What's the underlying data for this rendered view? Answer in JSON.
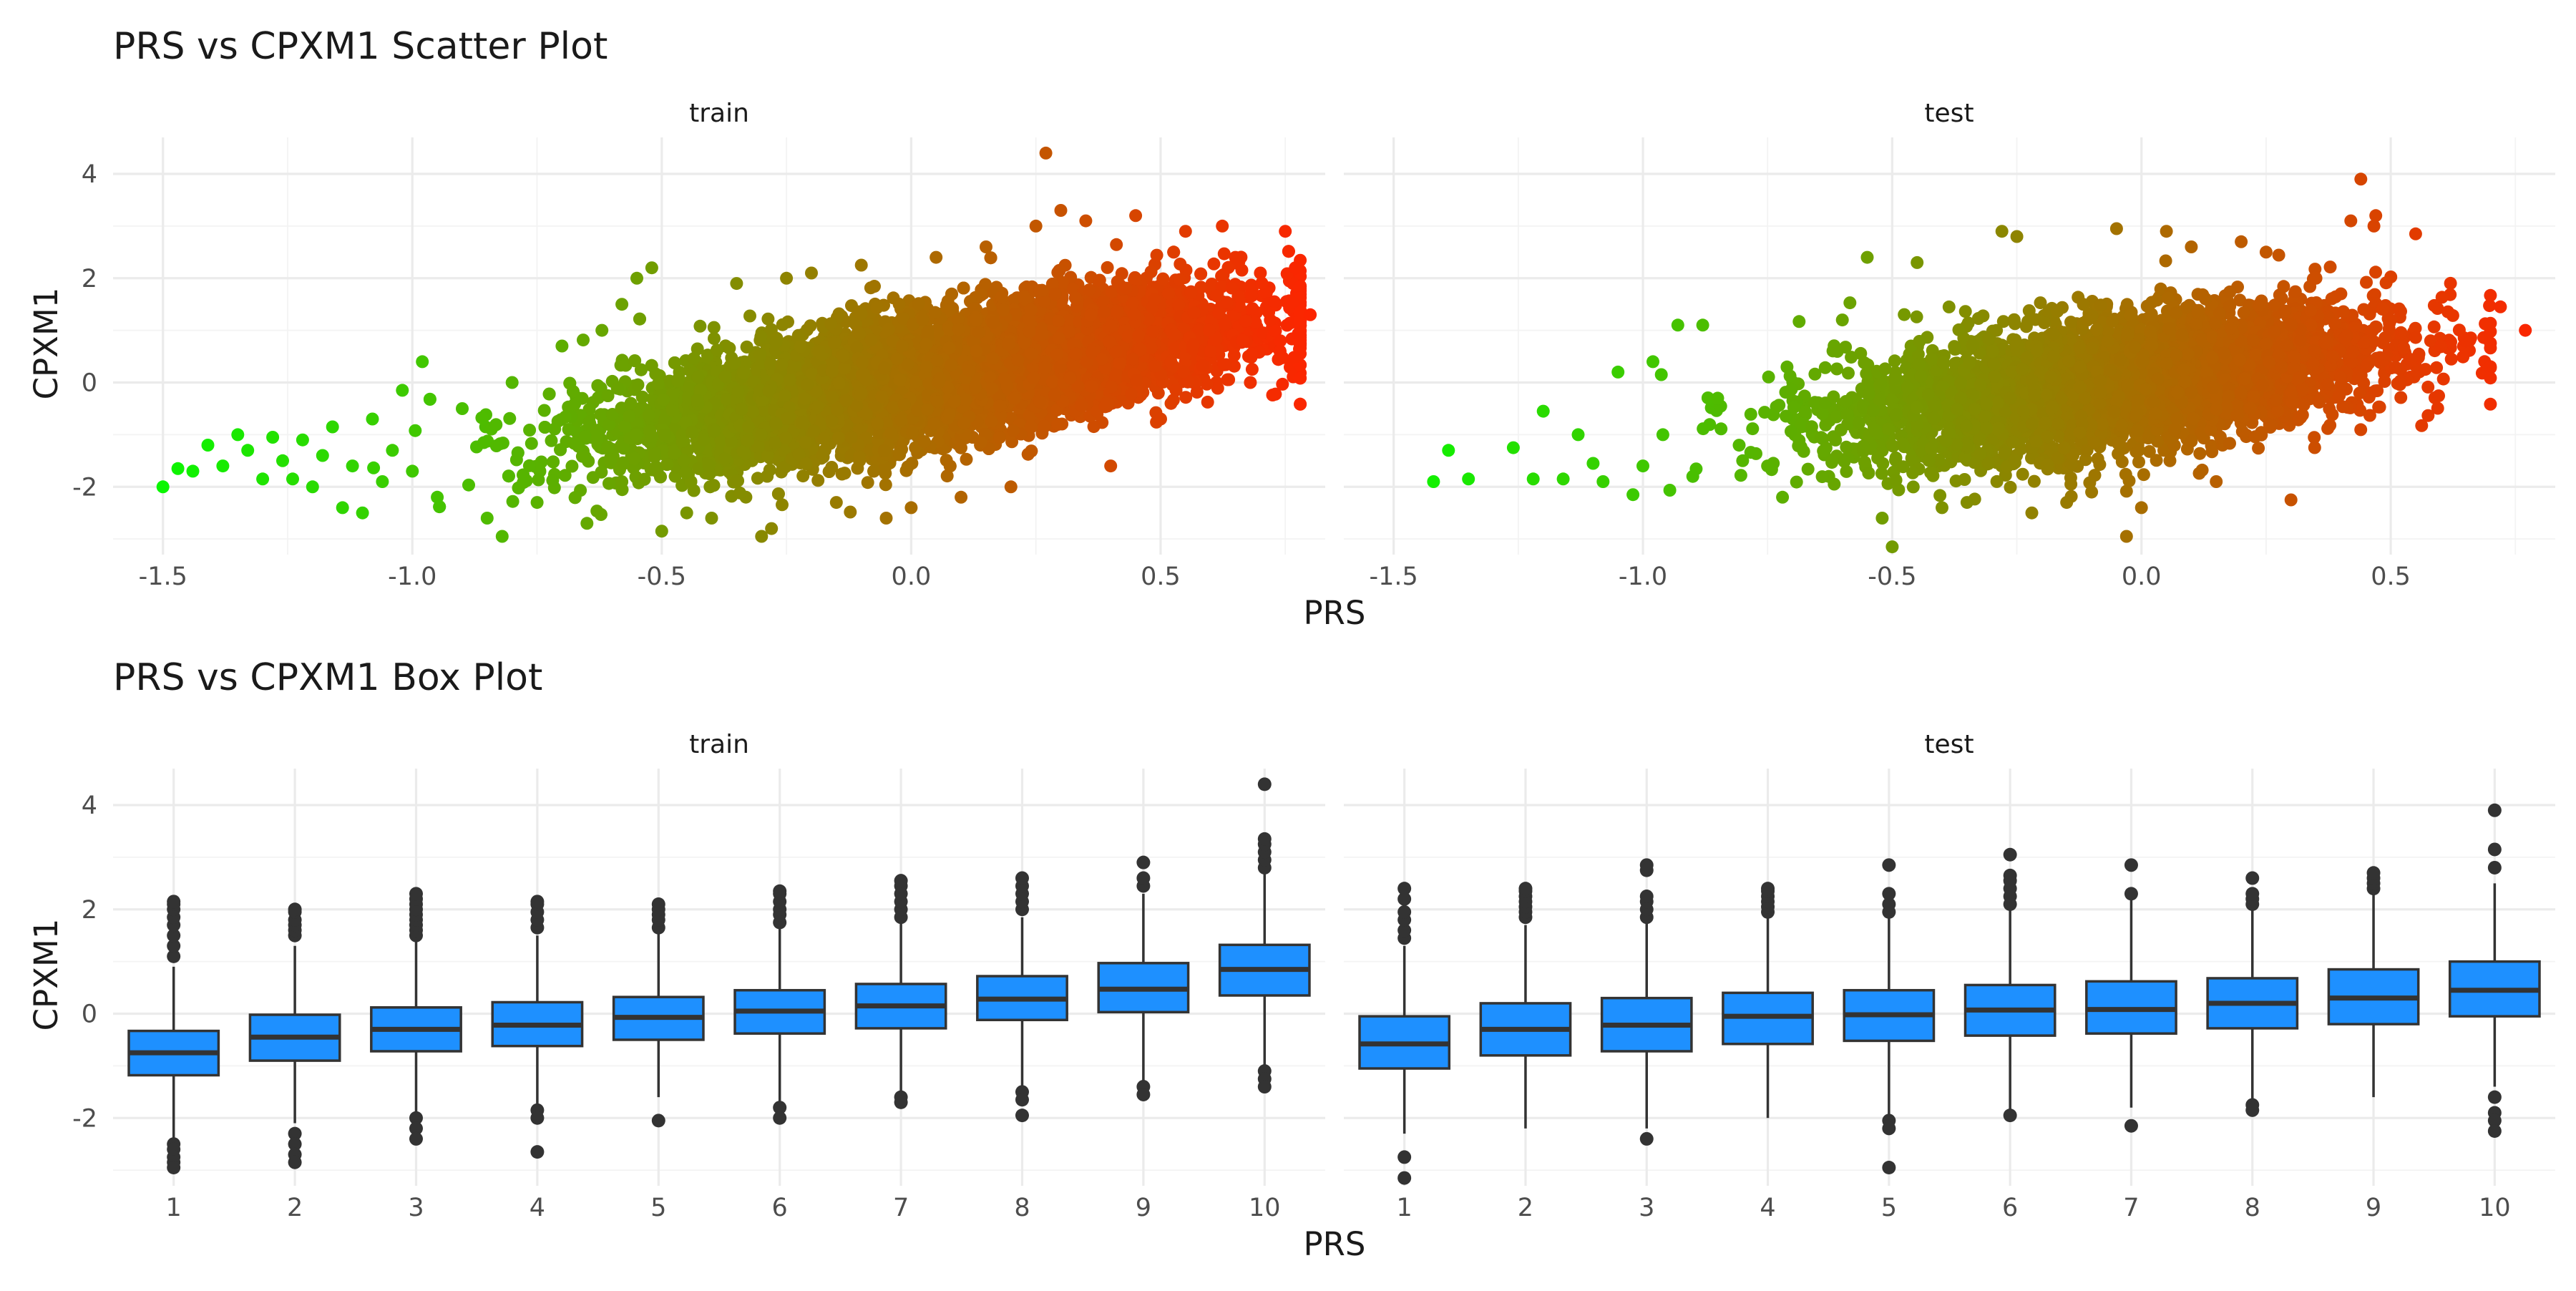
{
  "chart_data": [
    {
      "type": "scatter",
      "title": "PRS vs CPXM1 Scatter Plot",
      "xlabel": "PRS",
      "ylabel": "CPXM1",
      "facets": [
        "train",
        "test"
      ],
      "xlim": [
        -1.6,
        0.83
      ],
      "ylim": [
        -3.3,
        4.7
      ],
      "xticks": [
        -1.5,
        -1.0,
        -0.5,
        0.0,
        0.5
      ],
      "xtick_labels": [
        "-1.5",
        "-1.0",
        "-0.5",
        "0.0",
        "0.5"
      ],
      "yticks": [
        -2,
        0,
        2,
        4
      ],
      "ytick_labels": [
        "-2",
        "0",
        "2",
        "4"
      ],
      "grid": true,
      "legend": "none",
      "color_scale": {
        "low": "#00ff00",
        "high": "#ff2200",
        "mapped_to": "PRS"
      },
      "series": [
        {
          "name": "train",
          "points": [
            [
              -1.5,
              -2.0
            ],
            [
              -1.47,
              -1.65
            ],
            [
              -1.44,
              -1.7
            ],
            [
              -1.41,
              -1.2
            ],
            [
              -1.38,
              -1.6
            ],
            [
              -1.35,
              -1.0
            ],
            [
              -1.33,
              -1.3
            ],
            [
              -1.3,
              -1.85
            ],
            [
              -1.28,
              -1.05
            ],
            [
              -1.26,
              -1.5
            ],
            [
              -1.24,
              -1.85
            ],
            [
              -1.22,
              -1.1
            ],
            [
              -1.2,
              -2.0
            ],
            [
              -1.18,
              -1.4
            ],
            [
              -1.16,
              -0.85
            ],
            [
              -1.14,
              -2.4
            ],
            [
              -1.12,
              -1.6
            ],
            [
              -1.1,
              -2.5
            ],
            [
              -1.08,
              -0.7
            ],
            [
              -1.06,
              -1.9
            ],
            [
              -1.04,
              -1.3
            ],
            [
              -1.02,
              -0.15
            ],
            [
              -1.0,
              -1.7
            ],
            [
              -0.98,
              0.4
            ],
            [
              -0.95,
              -2.2
            ],
            [
              -0.9,
              -0.5
            ],
            [
              -0.85,
              -2.6
            ],
            [
              -0.82,
              -2.95
            ],
            [
              -0.8,
              0.0
            ],
            [
              -0.75,
              -2.3
            ],
            [
              -0.7,
              0.7
            ],
            [
              -0.65,
              -2.7
            ],
            [
              -0.62,
              1.0
            ],
            [
              -0.58,
              1.5
            ],
            [
              -0.55,
              2.0
            ],
            [
              -0.52,
              2.2
            ],
            [
              -0.5,
              -2.85
            ],
            [
              -0.45,
              -2.5
            ],
            [
              -0.4,
              -2.6
            ],
            [
              -0.35,
              1.9
            ],
            [
              -0.3,
              -2.95
            ],
            [
              -0.28,
              -2.8
            ],
            [
              -0.25,
              2.0
            ],
            [
              -0.2,
              2.1
            ],
            [
              -0.15,
              -2.3
            ],
            [
              -0.1,
              2.25
            ],
            [
              -0.05,
              -2.6
            ],
            [
              0.0,
              -2.4
            ],
            [
              0.05,
              2.4
            ],
            [
              0.1,
              -2.2
            ],
            [
              0.15,
              2.6
            ],
            [
              0.2,
              -2.0
            ],
            [
              0.25,
              3.0
            ],
            [
              0.27,
              4.4
            ],
            [
              0.3,
              3.3
            ],
            [
              0.35,
              3.1
            ],
            [
              0.4,
              -1.6
            ],
            [
              0.45,
              3.2
            ],
            [
              0.5,
              -0.7
            ],
            [
              0.55,
              2.9
            ],
            [
              0.6,
              0.6
            ],
            [
              0.65,
              2.4
            ],
            [
              0.68,
              0.0
            ],
            [
              0.7,
              2.1
            ],
            [
              0.72,
              1.2
            ],
            [
              0.74,
              0.8
            ],
            [
              0.75,
              2.9
            ],
            [
              0.77,
              2.2
            ],
            [
              0.78,
              1.35
            ],
            [
              0.8,
              1.3
            ]
          ]
        },
        {
          "name": "test",
          "points": [
            [
              -1.42,
              -1.9
            ],
            [
              -1.39,
              -1.3
            ],
            [
              -1.35,
              -1.85
            ],
            [
              -1.26,
              -1.25
            ],
            [
              -1.22,
              -1.85
            ],
            [
              -1.2,
              -0.55
            ],
            [
              -1.16,
              -1.85
            ],
            [
              -1.13,
              -1.0
            ],
            [
              -1.1,
              -1.55
            ],
            [
              -1.08,
              -1.9
            ],
            [
              -1.05,
              0.2
            ],
            [
              -1.02,
              -2.15
            ],
            [
              -1.0,
              -1.6
            ],
            [
              -0.98,
              0.4
            ],
            [
              -0.96,
              -1.0
            ],
            [
              -0.93,
              1.1
            ],
            [
              -0.9,
              -1.8
            ],
            [
              -0.88,
              1.1
            ],
            [
              -0.85,
              -0.3
            ],
            [
              -0.8,
              -1.5
            ],
            [
              -0.75,
              -1.6
            ],
            [
              -0.72,
              -2.2
            ],
            [
              -0.6,
              1.2
            ],
            [
              -0.55,
              2.4
            ],
            [
              -0.52,
              -2.6
            ],
            [
              -0.5,
              -3.15
            ],
            [
              -0.45,
              2.3
            ],
            [
              -0.4,
              -2.4
            ],
            [
              -0.35,
              -2.3
            ],
            [
              -0.28,
              2.9
            ],
            [
              -0.25,
              2.8
            ],
            [
              -0.22,
              -2.5
            ],
            [
              -0.15,
              -2.3
            ],
            [
              -0.1,
              -2.1
            ],
            [
              -0.05,
              2.95
            ],
            [
              -0.03,
              -2.95
            ],
            [
              0.0,
              -2.4
            ],
            [
              0.05,
              2.9
            ],
            [
              0.1,
              2.6
            ],
            [
              0.15,
              -1.9
            ],
            [
              0.2,
              2.7
            ],
            [
              0.25,
              2.5
            ],
            [
              0.3,
              -2.25
            ],
            [
              0.35,
              2.0
            ],
            [
              0.4,
              1.7
            ],
            [
              0.42,
              3.1
            ],
            [
              0.44,
              3.9
            ],
            [
              0.47,
              3.2
            ],
            [
              0.5,
              1.2
            ],
            [
              0.55,
              2.85
            ],
            [
              0.58,
              0.8
            ],
            [
              0.6,
              0.7
            ],
            [
              0.65,
              0.8
            ],
            [
              0.72,
              1.45
            ],
            [
              0.77,
              1.0
            ]
          ]
        }
      ]
    },
    {
      "type": "box",
      "title": "PRS vs CPXM1 Box Plot",
      "xlabel": "PRS",
      "ylabel": "CPXM1",
      "facets": [
        "train",
        "test"
      ],
      "categories": [
        "1",
        "2",
        "3",
        "4",
        "5",
        "6",
        "7",
        "8",
        "9",
        "10"
      ],
      "ylim": [
        -3.3,
        4.7
      ],
      "yticks": [
        -2,
        0,
        2,
        4
      ],
      "ytick_labels": [
        "-2",
        "0",
        "2",
        "4"
      ],
      "grid": true,
      "legend": "none",
      "box_color": "#1e90ff",
      "series": [
        {
          "name": "train",
          "boxes": [
            {
              "category": "1",
              "q1": -1.18,
              "median": -0.75,
              "q3": -0.33,
              "whisker_low": -2.42,
              "whisker_high": 0.9,
              "outliers": [
                -2.5,
                -2.6,
                -2.75,
                -2.85,
                -2.95,
                1.1,
                1.3,
                1.5,
                1.7,
                1.85,
                2.0,
                2.1,
                2.15
              ]
            },
            {
              "category": "2",
              "q1": -0.9,
              "median": -0.45,
              "q3": -0.02,
              "whisker_low": -2.1,
              "whisker_high": 1.3,
              "outliers": [
                -2.3,
                -2.5,
                -2.7,
                -2.85,
                1.5,
                1.6,
                1.7,
                1.8,
                1.95,
                2.0
              ]
            },
            {
              "category": "3",
              "q1": -0.72,
              "median": -0.3,
              "q3": 0.12,
              "whisker_low": -1.95,
              "whisker_high": 1.4,
              "outliers": [
                -2.0,
                -2.2,
                -2.4,
                1.5,
                1.6,
                1.7,
                1.8,
                1.9,
                2.0,
                2.1,
                2.2,
                2.3
              ]
            },
            {
              "category": "4",
              "q1": -0.62,
              "median": -0.22,
              "q3": 0.22,
              "whisker_low": -1.8,
              "whisker_high": 1.5,
              "outliers": [
                -1.85,
                -2.0,
                -2.65,
                1.65,
                1.8,
                1.95,
                2.1,
                2.15
              ]
            },
            {
              "category": "5",
              "q1": -0.5,
              "median": -0.07,
              "q3": 0.32,
              "whisker_low": -1.6,
              "whisker_high": 1.55,
              "outliers": [
                -2.05,
                1.65,
                1.8,
                1.9,
                2.0,
                2.1
              ]
            },
            {
              "category": "6",
              "q1": -0.38,
              "median": 0.05,
              "q3": 0.45,
              "whisker_low": -1.7,
              "whisker_high": 1.65,
              "outliers": [
                -1.8,
                -2.0,
                1.75,
                1.9,
                2.0,
                2.15,
                2.3,
                2.35
              ]
            },
            {
              "category": "7",
              "q1": -0.28,
              "median": 0.15,
              "q3": 0.57,
              "whisker_low": -1.5,
              "whisker_high": 1.75,
              "outliers": [
                -1.6,
                -1.7,
                1.85,
                2.0,
                2.15,
                2.3,
                2.45,
                2.55
              ]
            },
            {
              "category": "8",
              "q1": -0.12,
              "median": 0.28,
              "q3": 0.72,
              "whisker_low": -1.4,
              "whisker_high": 1.85,
              "outliers": [
                -1.5,
                -1.65,
                -1.95,
                2.0,
                2.15,
                2.3,
                2.45,
                2.6
              ]
            },
            {
              "category": "9",
              "q1": 0.03,
              "median": 0.47,
              "q3": 0.97,
              "whisker_low": -1.3,
              "whisker_high": 2.3,
              "outliers": [
                -1.4,
                -1.55,
                2.45,
                2.6,
                2.9
              ]
            },
            {
              "category": "10",
              "q1": 0.35,
              "median": 0.85,
              "q3": 1.32,
              "whisker_low": -1.0,
              "whisker_high": 2.7,
              "outliers": [
                -1.1,
                -1.25,
                -1.4,
                2.8,
                2.95,
                3.1,
                3.25,
                3.35,
                4.4
              ]
            }
          ]
        },
        {
          "name": "test",
          "boxes": [
            {
              "category": "1",
              "q1": -1.05,
              "median": -0.58,
              "q3": -0.05,
              "whisker_low": -2.3,
              "whisker_high": 1.3,
              "outliers": [
                -2.75,
                -3.15,
                1.45,
                1.6,
                1.8,
                1.95,
                2.2,
                2.4
              ]
            },
            {
              "category": "2",
              "q1": -0.8,
              "median": -0.3,
              "q3": 0.2,
              "whisker_low": -2.2,
              "whisker_high": 1.7,
              "outliers": [
                1.85,
                1.95,
                2.05,
                2.15,
                2.25,
                2.35,
                2.4
              ]
            },
            {
              "category": "3",
              "q1": -0.72,
              "median": -0.22,
              "q3": 0.3,
              "whisker_low": -2.2,
              "whisker_high": 1.75,
              "outliers": [
                -2.4,
                1.85,
                2.0,
                2.15,
                2.25,
                2.75,
                2.85
              ]
            },
            {
              "category": "4",
              "q1": -0.58,
              "median": -0.05,
              "q3": 0.4,
              "whisker_low": -2.0,
              "whisker_high": 1.85,
              "outliers": [
                1.95,
                2.05,
                2.15,
                2.25,
                2.35,
                2.4
              ]
            },
            {
              "category": "5",
              "q1": -0.52,
              "median": -0.02,
              "q3": 0.45,
              "whisker_low": -1.95,
              "whisker_high": 1.85,
              "outliers": [
                -2.05,
                -2.2,
                -2.95,
                1.95,
                2.1,
                2.3,
                2.85
              ]
            },
            {
              "category": "6",
              "q1": -0.42,
              "median": 0.07,
              "q3": 0.55,
              "whisker_low": -1.9,
              "whisker_high": 2.0,
              "outliers": [
                -1.95,
                2.1,
                2.25,
                2.4,
                2.55,
                2.65,
                3.05
              ]
            },
            {
              "category": "7",
              "q1": -0.38,
              "median": 0.08,
              "q3": 0.62,
              "whisker_low": -1.8,
              "whisker_high": 2.2,
              "outliers": [
                -2.15,
                2.3,
                2.85
              ]
            },
            {
              "category": "8",
              "q1": -0.28,
              "median": 0.2,
              "q3": 0.68,
              "whisker_low": -1.7,
              "whisker_high": 2.0,
              "outliers": [
                -1.75,
                -1.85,
                2.1,
                2.2,
                2.3,
                2.6
              ]
            },
            {
              "category": "9",
              "q1": -0.2,
              "median": 0.3,
              "q3": 0.85,
              "whisker_low": -1.6,
              "whisker_high": 2.3,
              "outliers": [
                2.4,
                2.5,
                2.6,
                2.7
              ]
            },
            {
              "category": "10",
              "q1": -0.05,
              "median": 0.45,
              "q3": 1.0,
              "whisker_low": -1.4,
              "whisker_high": 2.5,
              "outliers": [
                -1.6,
                -1.9,
                -2.05,
                -2.25,
                2.8,
                3.15,
                3.9
              ]
            }
          ]
        }
      ]
    }
  ]
}
